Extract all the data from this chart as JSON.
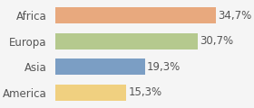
{
  "categories": [
    "Africa",
    "Europa",
    "Asia",
    "America"
  ],
  "values": [
    34.7,
    30.7,
    19.3,
    15.3
  ],
  "labels": [
    "34,7%",
    "30,7%",
    "19,3%",
    "15,3%"
  ],
  "bar_colors": [
    "#e8a97e",
    "#b5c98e",
    "#7b9ec4",
    "#f0d080"
  ],
  "background_color": "#f5f5f5",
  "xlim": [
    0,
    42
  ],
  "label_fontsize": 8.5,
  "tick_fontsize": 8.5
}
